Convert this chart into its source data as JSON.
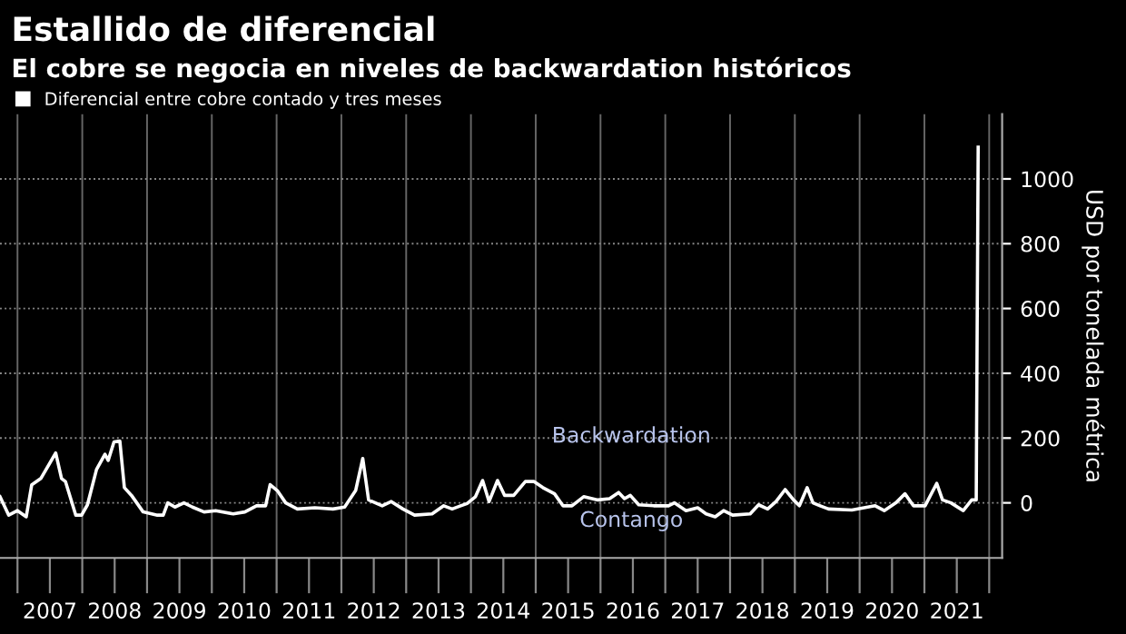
{
  "chart_data": {
    "type": "line",
    "title": "Estallido de diferencial",
    "subtitle": "El cobre se negocia en niveles de backwardation históricos",
    "ylabel": "USD por tonelada métrica",
    "annotations": [
      "Backwardation",
      "Contango"
    ],
    "x": [
      2006.73,
      2006.865,
      2007.0,
      2007.135,
      2007.22,
      2007.36,
      2007.59,
      2007.68,
      2007.74,
      2007.9,
      2007.99,
      2008.08,
      2008.22,
      2008.35,
      2008.4,
      2008.49,
      2008.58,
      2008.65,
      2008.76,
      2008.94,
      2009.16,
      2009.25,
      2009.32,
      2009.43,
      2009.57,
      2009.7,
      2009.88,
      2010.06,
      2010.33,
      2010.51,
      2010.69,
      2010.83,
      2010.9,
      2011.01,
      2011.14,
      2011.32,
      2011.59,
      2011.87,
      2012.05,
      2012.22,
      2012.33,
      2012.42,
      2012.63,
      2012.77,
      2012.95,
      2013.13,
      2013.4,
      2013.58,
      2013.71,
      2013.94,
      2014.07,
      2014.18,
      2014.28,
      2014.41,
      2014.52,
      2014.66,
      2014.84,
      2014.97,
      2015.11,
      2015.29,
      2015.42,
      2015.56,
      2015.74,
      2015.96,
      2016.14,
      2016.28,
      2016.37,
      2016.46,
      2016.59,
      2016.82,
      2017.05,
      2017.14,
      2017.32,
      2017.5,
      2017.63,
      2017.77,
      2017.9,
      2018.04,
      2018.31,
      2018.44,
      2018.58,
      2018.71,
      2018.85,
      2018.98,
      2019.07,
      2019.19,
      2019.28,
      2019.39,
      2019.52,
      2019.88,
      2020.24,
      2020.38,
      2020.56,
      2020.7,
      2020.83,
      2021.01,
      2021.19,
      2021.28,
      2021.41,
      2021.6,
      2021.73,
      2021.8,
      2021.83
    ],
    "series": [
      {
        "name": "Diferencial entre cobre contado y tres meses",
        "color": "#ffffff",
        "values": [
          19,
          -38,
          -24,
          -43,
          56,
          75,
          154,
          75,
          66,
          -38,
          -38,
          -6,
          103,
          150,
          131,
          188,
          191,
          47,
          23,
          -28,
          -38,
          -38,
          0,
          -13,
          0,
          -13,
          -28,
          -24,
          -34,
          -28,
          -9,
          -9,
          56,
          38,
          0,
          -19,
          -15,
          -19,
          -13,
          38,
          137,
          9,
          -9,
          4,
          -19,
          -38,
          -34,
          -9,
          -19,
          -2,
          19,
          69,
          4,
          69,
          23,
          23,
          66,
          66,
          47,
          28,
          -9,
          -9,
          19,
          9,
          13,
          32,
          13,
          23,
          -6,
          -9,
          -9,
          0,
          -24,
          -15,
          -34,
          -43,
          -24,
          -38,
          -34,
          -6,
          -19,
          4,
          41,
          9,
          -9,
          47,
          0,
          -9,
          -19,
          -22,
          -9,
          -24,
          0,
          28,
          -9,
          -9,
          60,
          9,
          0,
          -24,
          9,
          9,
          1098
        ]
      }
    ],
    "xlim": [
      2006.73,
      2022.2
    ],
    "xticks": [
      {
        "value": 2007,
        "label": null
      },
      {
        "value": 2007.5,
        "label": "2007"
      },
      {
        "value": 2008,
        "label": null
      },
      {
        "value": 2008.5,
        "label": "2008"
      },
      {
        "value": 2009,
        "label": null
      },
      {
        "value": 2009.5,
        "label": "2009"
      },
      {
        "value": 2010,
        "label": null
      },
      {
        "value": 2010.5,
        "label": "2010"
      },
      {
        "value": 2011,
        "label": null
      },
      {
        "value": 2011.5,
        "label": "2011"
      },
      {
        "value": 2012,
        "label": null
      },
      {
        "value": 2012.5,
        "label": "2012"
      },
      {
        "value": 2013,
        "label": null
      },
      {
        "value": 2013.5,
        "label": "2013"
      },
      {
        "value": 2014,
        "label": null
      },
      {
        "value": 2014.5,
        "label": "2014"
      },
      {
        "value": 2015,
        "label": null
      },
      {
        "value": 2015.5,
        "label": "2015"
      },
      {
        "value": 2016,
        "label": null
      },
      {
        "value": 2016.5,
        "label": "2016"
      },
      {
        "value": 2017,
        "label": null
      },
      {
        "value": 2017.5,
        "label": "2017"
      },
      {
        "value": 2018,
        "label": null
      },
      {
        "value": 2018.5,
        "label": "2018"
      },
      {
        "value": 2019,
        "label": null
      },
      {
        "value": 2019.5,
        "label": "2019"
      },
      {
        "value": 2020,
        "label": null
      },
      {
        "value": 2020.5,
        "label": "2020"
      },
      {
        "value": 2021,
        "label": null
      },
      {
        "value": 2021.5,
        "label": "2021"
      },
      {
        "value": 2022,
        "label": null
      }
    ],
    "ylim": [
      -170,
      1200
    ],
    "yticks": [
      0,
      200,
      400,
      600,
      800,
      1000
    ],
    "grid": true,
    "legend": "top left",
    "marker": "none",
    "line_style": "solid"
  }
}
